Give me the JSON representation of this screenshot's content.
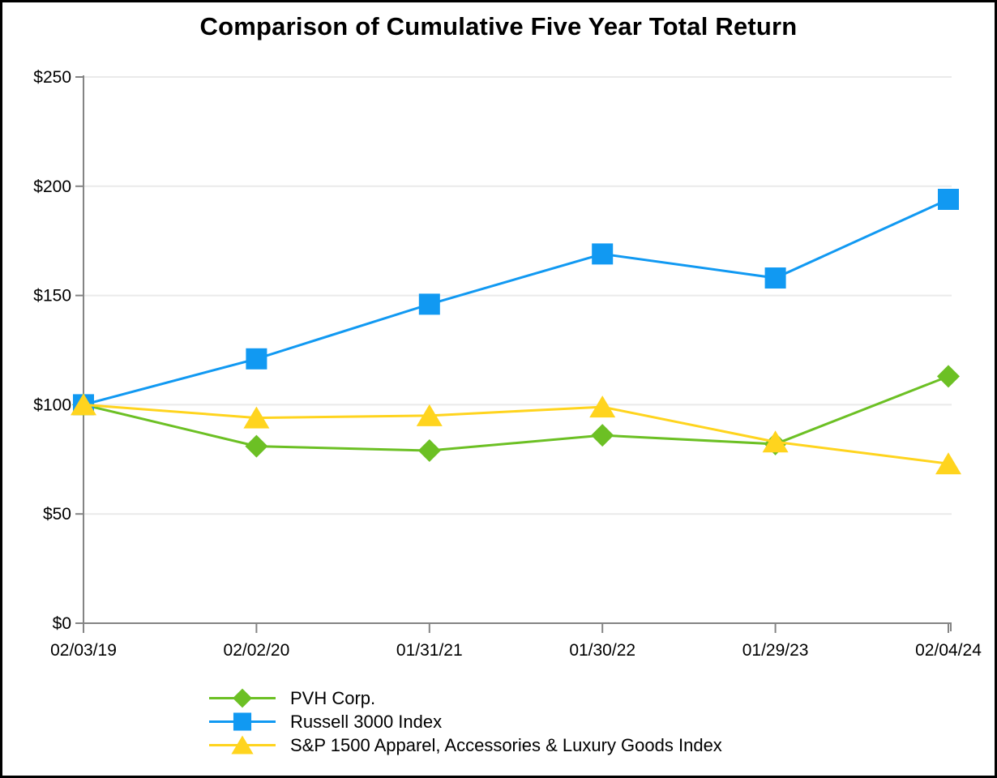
{
  "chart_data": {
    "type": "line",
    "title": "Comparison of Cumulative Five Year Total Return",
    "x_labels": [
      "02/03/19",
      "02/02/20",
      "01/31/21",
      "01/30/22",
      "01/29/23",
      "02/04/24"
    ],
    "y_ticks": [
      {
        "label": "$0",
        "value": 0
      },
      {
        "label": "$50",
        "value": 50
      },
      {
        "label": "$100",
        "value": 100
      },
      {
        "label": "$150",
        "value": 150
      },
      {
        "label": "$200",
        "value": 200
      },
      {
        "label": "$250",
        "value": 250
      }
    ],
    "ylim": [
      0,
      250
    ],
    "grid": true,
    "legend_position": "bottom-left",
    "series": [
      {
        "name": "PVH Corp.",
        "marker": "diamond",
        "color": "#6CC024",
        "values": [
          100,
          81,
          79,
          86,
          82,
          113
        ]
      },
      {
        "name": "Russell 3000 Index",
        "marker": "square",
        "color": "#1199F2",
        "values": [
          100,
          121,
          146,
          169,
          158,
          194
        ]
      },
      {
        "name": "S&P 1500 Apparel, Accessories & Luxury Goods Index",
        "marker": "triangle",
        "color": "#FFD41E",
        "values": [
          100,
          94,
          95,
          99,
          83,
          73
        ]
      }
    ],
    "colors": {
      "axis": "#848484",
      "gridline": "#EAEAEA",
      "text": "#000000"
    }
  }
}
